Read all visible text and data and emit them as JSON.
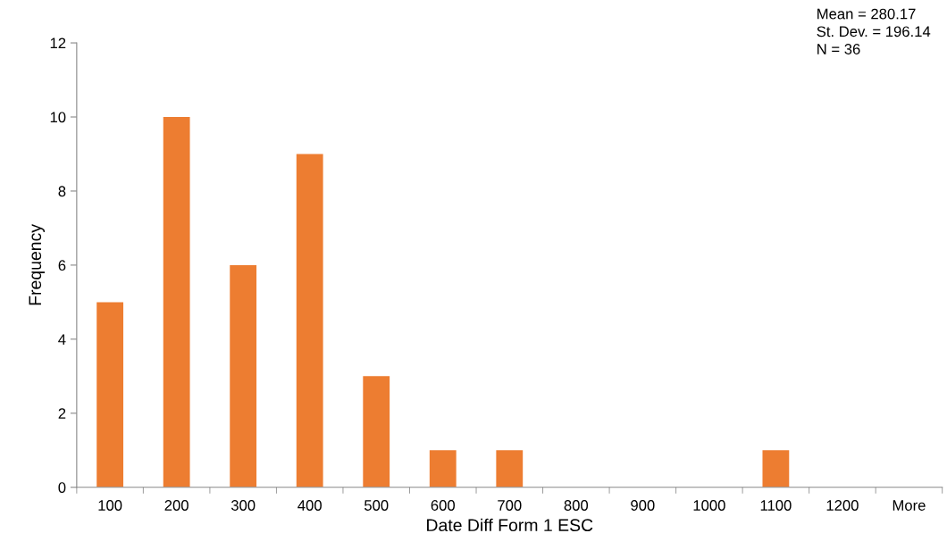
{
  "chart_data": {
    "type": "bar",
    "xlabel": "Date Diff Form 1 ESC",
    "ylabel": "Frequency",
    "categories": [
      "100",
      "200",
      "300",
      "400",
      "500",
      "600",
      "700",
      "800",
      "900",
      "1000",
      "1100",
      "1200",
      "More"
    ],
    "values": [
      5,
      10,
      6,
      9,
      3,
      1,
      1,
      0,
      0,
      0,
      1,
      0,
      0
    ],
    "color": "#ed7d31",
    "ylim": [
      0,
      12
    ],
    "yticks": [
      0,
      2,
      4,
      6,
      8,
      10,
      12
    ],
    "grid": false,
    "legend": false,
    "annotations": [
      "Mean = 280.17",
      "St. Dev. = 196.14",
      "N = 36"
    ]
  }
}
